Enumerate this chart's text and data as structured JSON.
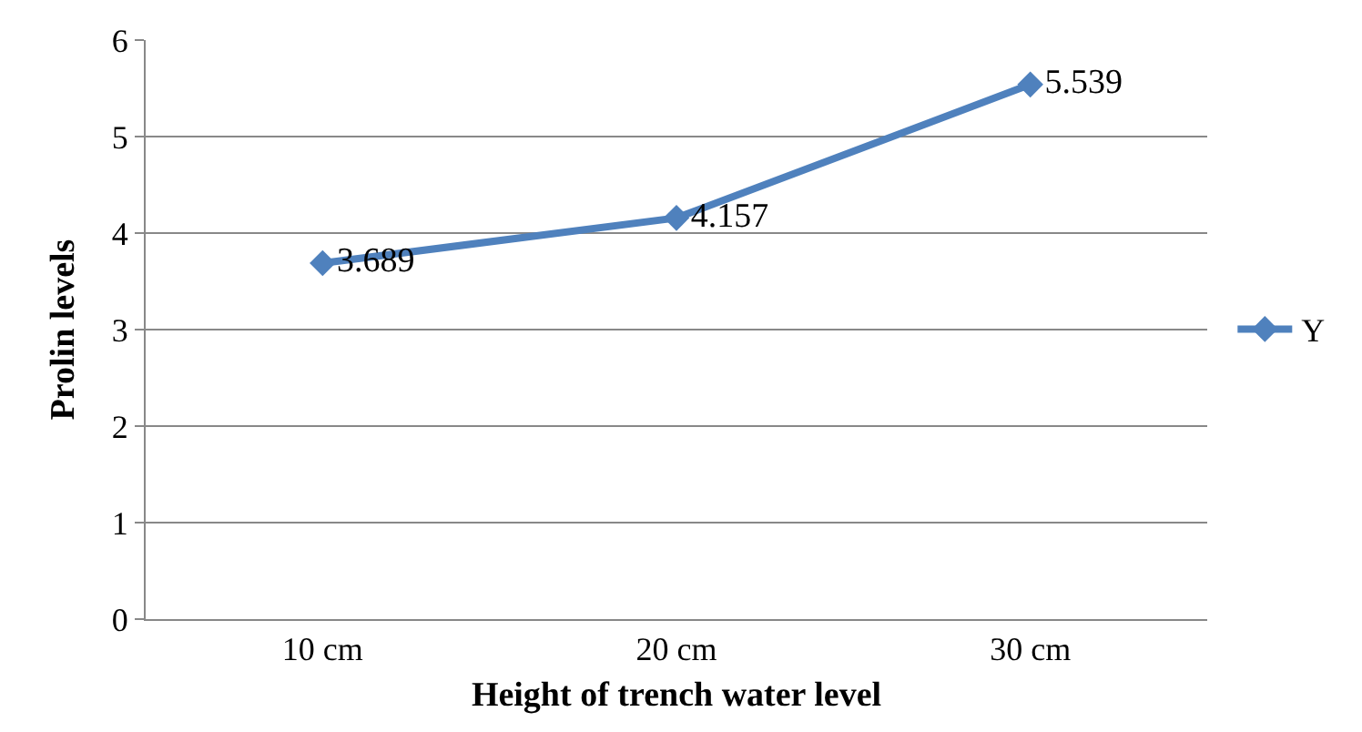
{
  "chart_data": {
    "type": "line",
    "xlabel": "Height of trench water level",
    "ylabel": "Prolin levels",
    "categories": [
      "10 cm",
      "20 cm",
      "30 cm"
    ],
    "series": [
      {
        "name": "Y",
        "color": "#4f81bd",
        "values": [
          3.689,
          4.157,
          5.539
        ]
      }
    ],
    "ylim": [
      0,
      6
    ],
    "yticks": [
      0,
      1,
      2,
      3,
      4,
      5,
      6
    ],
    "grid": "y",
    "legend": "right",
    "marker": "diamond",
    "line_style": "solid",
    "data_labels": true
  }
}
